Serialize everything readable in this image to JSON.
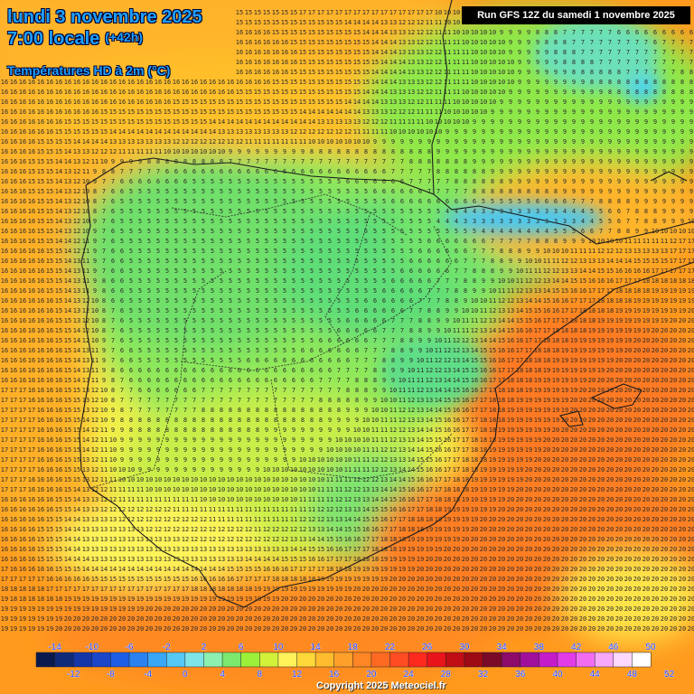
{
  "header": {
    "date_line": "lundi 3 novembre 2025",
    "time_line": "7:00 locale",
    "lead_time": "(+42h)",
    "parameter": "Températures HD à 2m (°C)",
    "run_info": "Run GFS 12Z du samedi 1 novembre 2025"
  },
  "legend": {
    "top_labels": [
      "-14",
      "-10",
      "-6",
      "-2",
      "2",
      "6",
      "10",
      "14",
      "18",
      "22",
      "26",
      "30",
      "34",
      "38",
      "42",
      "46",
      "50"
    ],
    "bottom_labels": [
      "-12",
      "-8",
      "-4",
      "0",
      "4",
      "8",
      "12",
      "16",
      "20",
      "24",
      "28",
      "32",
      "36",
      "40",
      "44",
      "48",
      "52"
    ],
    "colors": [
      "#0a1a4e",
      "#102a7a",
      "#1436a8",
      "#1a46c8",
      "#1e5ee6",
      "#2a82f0",
      "#3aa6f6",
      "#56c8f6",
      "#7ee4e8",
      "#8cf0b0",
      "#7ce86e",
      "#9cf03a",
      "#d2f23a",
      "#fff25a",
      "#ffd83a",
      "#ffbc2c",
      "#ffa02a",
      "#ff8624",
      "#ff6a22",
      "#ff4c22",
      "#ff2a1e",
      "#e8141a",
      "#c00e14",
      "#9c0a14",
      "#7a0a28",
      "#8c0a6a",
      "#a0109c",
      "#c41cc8",
      "#e23ce8",
      "#f26cf2",
      "#f8a8f8",
      "#fcd8fc",
      "#ffffff"
    ]
  },
  "footer": {
    "copyright": "Copyright 2025 Meteociel.fr"
  }
}
